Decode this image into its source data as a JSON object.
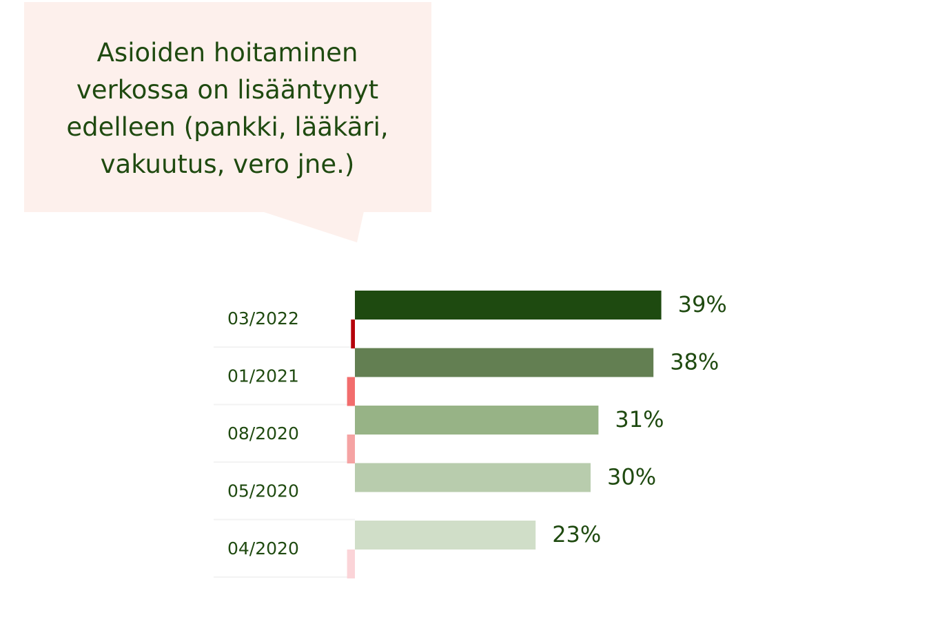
{
  "chart_data": {
    "type": "bar",
    "orientation": "horizontal",
    "title": "Asioiden hoitaminen verkossa on lisääntynyt edelleen (pankki, lääkäri, vakuutus, vero jne.)",
    "categories": [
      "03/2022",
      "01/2021",
      "08/2020",
      "05/2020",
      "04/2020"
    ],
    "series": [
      {
        "colors": [
          "#1e4a10",
          "#637f52",
          "#97b386",
          "#b8ccad",
          "#d0dec8"
        ],
        "values": [
          39,
          38,
          31,
          30,
          23
        ],
        "value_labels": [
          "39%",
          "38%",
          "31%",
          "30%",
          "23%"
        ]
      },
      {
        "colors": [
          "#b5000a",
          "#f26d6d",
          "#f5a3a3",
          "#f8c4c6",
          "#fbd4d8"
        ],
        "values": [
          -0.5,
          -1,
          -1,
          0,
          -1
        ]
      }
    ],
    "xlim": [
      -10,
      50
    ]
  }
}
